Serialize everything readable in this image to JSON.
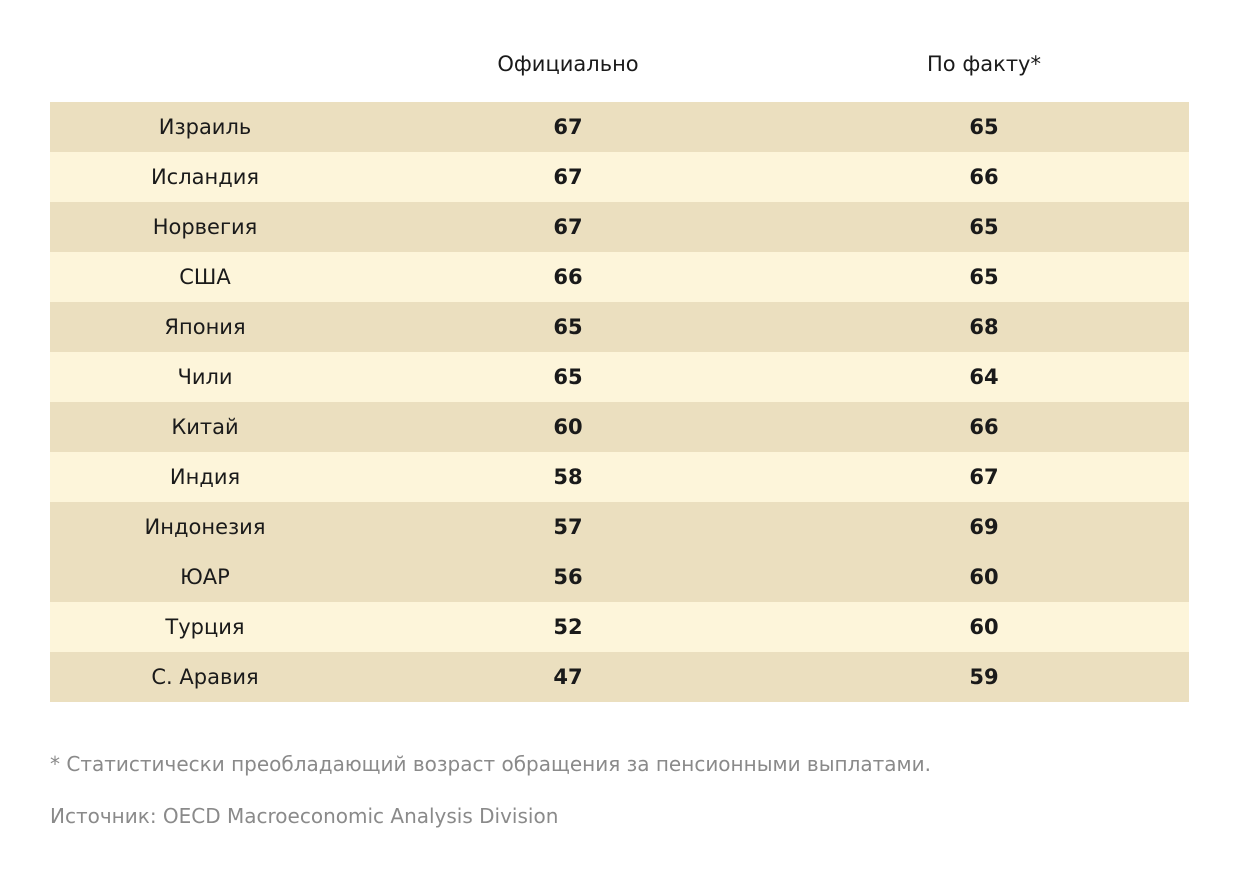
{
  "header": {
    "official_label": "Официально",
    "actual_label": "По факту*"
  },
  "chart_data": {
    "type": "table",
    "columns": [
      "",
      "Официально",
      "По факту*"
    ],
    "rows": [
      {
        "country": "Израиль",
        "official": "67",
        "actual": "65"
      },
      {
        "country": "Исландия",
        "official": "67",
        "actual": "66"
      },
      {
        "country": "Норвегия",
        "official": "67",
        "actual": "65"
      },
      {
        "country": "США",
        "official": "66",
        "actual": "65"
      },
      {
        "country": "Япония",
        "official": "65",
        "actual": "68"
      },
      {
        "country": "Чили",
        "official": "65",
        "actual": "64"
      },
      {
        "country": "Китай",
        "official": "60",
        "actual": "66"
      },
      {
        "country": "Индия",
        "official": "58",
        "actual": "67"
      },
      {
        "country": "Индонезия",
        "official": "57",
        "actual": "69"
      },
      {
        "country": "ЮАР",
        "official": "56",
        "actual": "60"
      },
      {
        "country": "Турция",
        "official": "52",
        "actual": "60"
      },
      {
        "country": "С. Аравия",
        "official": "47",
        "actual": "59"
      }
    ],
    "row_shading": [
      "dark",
      "light",
      "dark",
      "light",
      "dark",
      "light",
      "dark",
      "light",
      "dark",
      "dark",
      "light",
      "dark"
    ]
  },
  "colors": {
    "row_dark": "#ebdfbf",
    "row_light": "#fdf5da",
    "note_text": "#8a8a8a"
  },
  "footer": {
    "footnote": "* Статистически преобладающий возраст обращения за пенсионными выплатами.",
    "source": "Источник: OECD Macroeconomic Analysis Division"
  }
}
